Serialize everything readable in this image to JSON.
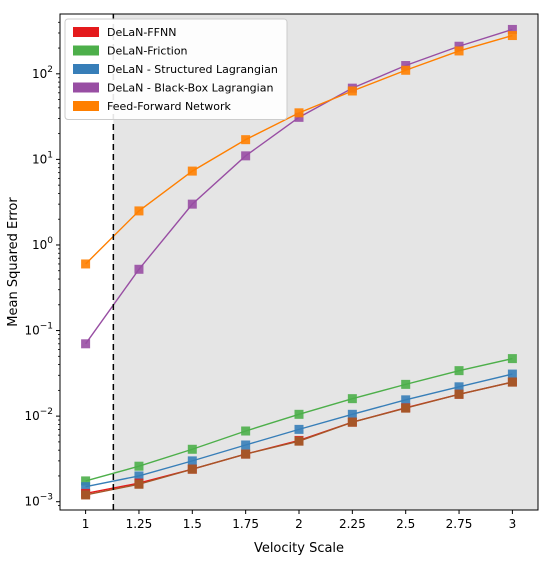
{
  "chart_data": {
    "type": "line",
    "yscale": "log",
    "xlabel": "Velocity Scale",
    "ylabel": "Mean Squared Error",
    "x": [
      1,
      1.25,
      1.5,
      1.75,
      2,
      2.25,
      2.5,
      2.75,
      3
    ],
    "x_tick_labels": [
      "1",
      "1.25",
      "1.5",
      "1.75",
      "2",
      "2.25",
      "2.5",
      "2.75",
      "3"
    ],
    "xlim": [
      0.88,
      3.12
    ],
    "ylim": [
      0.0008,
      500
    ],
    "y_ticks": [
      {
        "value": 0.001,
        "base": "10",
        "exp": "−3"
      },
      {
        "value": 0.01,
        "base": "10",
        "exp": "−2"
      },
      {
        "value": 0.1,
        "base": "10",
        "exp": "−1"
      },
      {
        "value": 1,
        "base": "10",
        "exp": "0"
      },
      {
        "value": 10,
        "base": "10",
        "exp": "1"
      },
      {
        "value": 100,
        "base": "10",
        "exp": "2"
      }
    ],
    "threshold_x": 1.13,
    "shaded_from_threshold": true,
    "colors": {
      "shaded_region": "#e5e5e5",
      "threshold_line": "#000000"
    },
    "legend_position": "top-left",
    "series": [
      {
        "name": "DeLaN-FFNN",
        "color": "#e41a1c",
        "values": [
          0.00125,
          0.00165,
          0.0024,
          0.0036,
          0.0052,
          0.0085,
          0.0125,
          0.018,
          0.025
        ]
      },
      {
        "name": "DeLaN-Friction",
        "color": "#4daf4a",
        "values": [
          0.00175,
          0.0026,
          0.0041,
          0.0067,
          0.0105,
          0.016,
          0.0235,
          0.034,
          0.047
        ]
      },
      {
        "name": "DeLaN - Structured Lagrangian",
        "color": "#377eb8",
        "values": [
          0.0015,
          0.002,
          0.003,
          0.0046,
          0.007,
          0.0105,
          0.0155,
          0.022,
          0.031
        ]
      },
      {
        "name": "DeLaN - Black-Box Lagrangian",
        "color": "#984ea3",
        "values": [
          0.07,
          0.52,
          3.0,
          11.0,
          31.0,
          68.0,
          125.0,
          210.0,
          330.0
        ]
      },
      {
        "name": "Feed-Forward Network",
        "color": "#ff7f00",
        "values": [
          0.6,
          2.5,
          7.3,
          17.0,
          35.0,
          63.0,
          110.0,
          185.0,
          280.0
        ]
      }
    ],
    "brown_overlay": {
      "note_color": "#a65628",
      "values": [
        0.0012,
        0.0016,
        0.0024,
        0.0036,
        0.0051,
        0.0085,
        0.0124,
        0.018,
        0.025
      ]
    }
  }
}
